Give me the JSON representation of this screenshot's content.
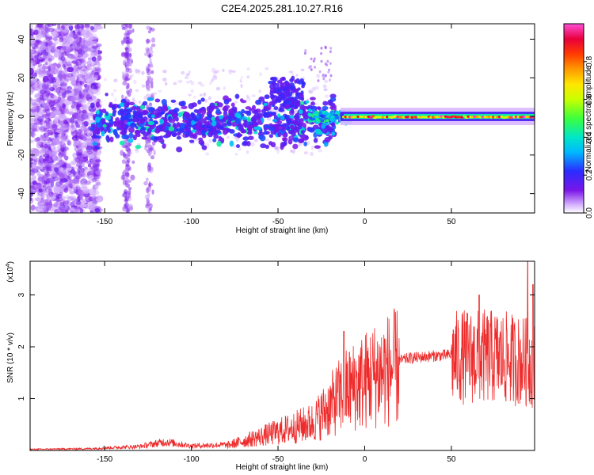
{
  "title": "C2E4.2025.281.10.27.R16",
  "chart_data": [
    {
      "type": "heatmap",
      "xlabel": "Height of straight line (km)",
      "ylabel": "Frequency (Hz)",
      "xlim": [
        -193,
        98
      ],
      "ylim": [
        -50,
        48
      ],
      "x_ticks": [
        -150,
        -100,
        -50,
        0,
        50
      ],
      "y_ticks": [
        -40,
        -20,
        0,
        20,
        40
      ],
      "colorbar": {
        "label": "Normalized spectral amplitude",
        "range": [
          0,
          1
        ],
        "ticks": [
          0.0,
          0.2,
          0.4,
          0.6,
          0.8
        ],
        "colormap": [
          "#ffffff",
          "#d9b8ff",
          "#7a16e8",
          "#2b2bff",
          "#00b8ff",
          "#00e6c8",
          "#3cff3c",
          "#c8ff00",
          "#ffe600",
          "#ff9a00",
          "#ff3b00",
          "#e8003c",
          "#ff4fd8"
        ]
      }
    },
    {
      "type": "line",
      "xlabel": "Height of straight line (km)",
      "ylabel": "SNR (10 * v/v)",
      "scale_label": "(x10",
      "scale_exp": "4",
      "scale_close": ")",
      "xlim": [
        -193,
        98
      ],
      "ylim": [
        0,
        3.65
      ],
      "x_ticks": [
        -150,
        -100,
        -50,
        0,
        50
      ],
      "y_ticks": [
        1,
        2,
        3
      ],
      "color": "#ee2b2b",
      "envelope": {
        "x": [
          -193,
          -160,
          -130,
          -115,
          -100,
          -80,
          -60,
          -45,
          -30,
          -20,
          -12,
          -5,
          5,
          15,
          25,
          40,
          50,
          55,
          65,
          75,
          85,
          92,
          98
        ],
        "y": [
          0.02,
          0.03,
          0.07,
          0.15,
          0.08,
          0.1,
          0.3,
          0.45,
          0.6,
          0.95,
          1.25,
          1.4,
          1.6,
          1.75,
          1.85,
          1.9,
          1.92,
          1.95,
          1.95,
          1.95,
          1.9,
          1.85,
          1.8
        ]
      },
      "peaks": [
        {
          "x": -12,
          "y": 2.3
        },
        {
          "x": 66,
          "y": 3.0
        },
        {
          "x": 94,
          "y": 3.65
        },
        {
          "x": 97,
          "y": 3.2
        }
      ]
    }
  ]
}
